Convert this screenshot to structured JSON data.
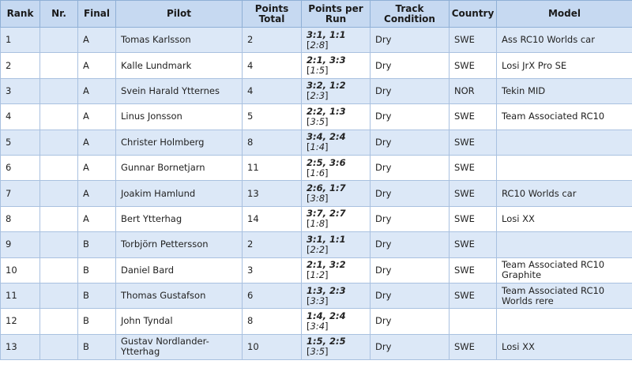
{
  "headers": {
    "rank": "Rank",
    "nr": "Nr.",
    "final": "Final",
    "pilot": "Pilot",
    "points_total": "Points Total",
    "points_per_run": "Points per Run",
    "track_condition": "Track Condition",
    "country": "Country",
    "model": "Model"
  },
  "rows": [
    {
      "rank": "1",
      "nr": "",
      "final": "A",
      "pilot": "Tomas Karlsson",
      "points_total": "2",
      "run_main": "3:1, 1:1",
      "run_sub": "2:8",
      "track": "Dry",
      "country": "SWE",
      "model": "Ass RC10 Worlds car"
    },
    {
      "rank": "2",
      "nr": "",
      "final": "A",
      "pilot": "Kalle Lundmark",
      "points_total": "4",
      "run_main": "2:1, 3:3",
      "run_sub": "1:5",
      "track": "Dry",
      "country": "SWE",
      "model": "Losi JrX Pro SE"
    },
    {
      "rank": "3",
      "nr": "",
      "final": "A",
      "pilot": "Svein Harald Ytternes",
      "points_total": "4",
      "run_main": "3:2, 1:2",
      "run_sub": "2:3",
      "track": "Dry",
      "country": "NOR",
      "model": "Tekin MID"
    },
    {
      "rank": "4",
      "nr": "",
      "final": "A",
      "pilot": "Linus Jonsson",
      "points_total": "5",
      "run_main": "2:2, 1:3",
      "run_sub": "3:5",
      "track": "Dry",
      "country": "SWE",
      "model": "Team Associated RC10"
    },
    {
      "rank": "5",
      "nr": "",
      "final": "A",
      "pilot": "Christer Holmberg",
      "points_total": "8",
      "run_main": "3:4, 2:4",
      "run_sub": "1:4",
      "track": "Dry",
      "country": "SWE",
      "model": ""
    },
    {
      "rank": "6",
      "nr": "",
      "final": "A",
      "pilot": "Gunnar Bornetjarn",
      "points_total": "11",
      "run_main": "2:5, 3:6",
      "run_sub": "1:6",
      "track": "Dry",
      "country": "SWE",
      "model": ""
    },
    {
      "rank": "7",
      "nr": "",
      "final": "A",
      "pilot": "Joakim Hamlund",
      "points_total": "13",
      "run_main": "2:6, 1:7",
      "run_sub": "3:8",
      "track": "Dry",
      "country": "SWE",
      "model": "RC10 Worlds car"
    },
    {
      "rank": "8",
      "nr": "",
      "final": "A",
      "pilot": "Bert Ytterhag",
      "points_total": "14",
      "run_main": "3:7, 2:7",
      "run_sub": "1:8",
      "track": "Dry",
      "country": "SWE",
      "model": "Losi XX"
    },
    {
      "rank": "9",
      "nr": "",
      "final": "B",
      "pilot": "Torbjörn Pettersson",
      "points_total": "2",
      "run_main": "3:1, 1:1",
      "run_sub": "2:2",
      "track": "Dry",
      "country": "SWE",
      "model": ""
    },
    {
      "rank": "10",
      "nr": "",
      "final": "B",
      "pilot": "Daniel Bard",
      "points_total": "3",
      "run_main": "2:1, 3:2",
      "run_sub": "1:2",
      "track": "Dry",
      "country": "SWE",
      "model": "Team Associated RC10 Graphite"
    },
    {
      "rank": "11",
      "nr": "",
      "final": "B",
      "pilot": "Thomas Gustafson",
      "points_total": "6",
      "run_main": "1:3, 2:3",
      "run_sub": "3:3",
      "track": "Dry",
      "country": "SWE",
      "model": "Team Associated RC10 Worlds rere"
    },
    {
      "rank": "12",
      "nr": "",
      "final": "B",
      "pilot": "John Tyndal",
      "points_total": "8",
      "run_main": "1:4, 2:4",
      "run_sub": "3:4",
      "track": "Dry",
      "country": "",
      "model": ""
    },
    {
      "rank": "13",
      "nr": "",
      "final": "B",
      "pilot": "Gustav Nordlander-Ytterhag",
      "points_total": "10",
      "run_main": "1:5, 2:5",
      "run_sub": "3:5",
      "track": "Dry",
      "country": "SWE",
      "model": "Losi XX"
    }
  ],
  "colors": {
    "header_bg": "#c6d9f1",
    "odd_row_bg": "#dce8f7",
    "even_row_bg": "#ffffff",
    "border": "#a9c1e0"
  }
}
